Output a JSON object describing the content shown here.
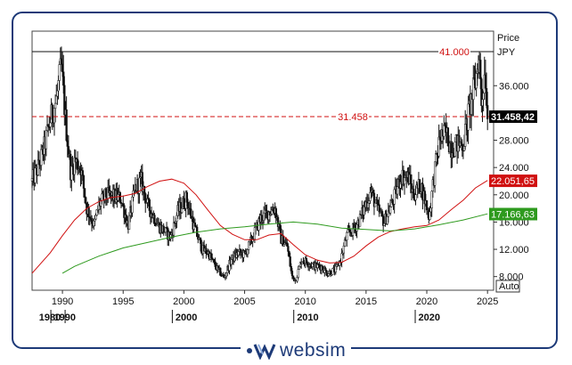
{
  "chart_data": {
    "type": "candlestick",
    "y_axis_title": "Price",
    "currency": "JPY",
    "scale_mode": "Auto",
    "ylim": [
      6000,
      44000
    ],
    "xlim": [
      1987.5,
      2025.5
    ],
    "y_ticks": [
      8000,
      12000,
      16000,
      20000,
      24000,
      28000,
      36000
    ],
    "y_tick_labels": [
      "8.000",
      "12.000",
      "16.000",
      "20.000",
      "24.000",
      "28.000",
      "36.000"
    ],
    "x_ticks": [
      1990,
      1995,
      2000,
      2005,
      2010,
      2015,
      2020,
      2025
    ],
    "x_tick_labels": [
      "1990",
      "1995",
      "2000",
      "2005",
      "2010",
      "2015",
      "2020",
      "2025"
    ],
    "decade_labels": [
      {
        "year": 1980,
        "label": "1980"
      },
      {
        "year": 1990,
        "label": "1990"
      },
      {
        "year": 2000,
        "label": "2000"
      },
      {
        "year": 2010,
        "label": "2010"
      },
      {
        "year": 2020,
        "label": "2020"
      }
    ],
    "price_path": [
      [
        1987.5,
        22000
      ],
      [
        1988,
        24000
      ],
      [
        1988.5,
        27000
      ],
      [
        1989,
        31000
      ],
      [
        1989.5,
        34000
      ],
      [
        1989.9,
        38900
      ],
      [
        1990.3,
        30000
      ],
      [
        1990.7,
        23000
      ],
      [
        1991,
        25000
      ],
      [
        1991.5,
        24000
      ],
      [
        1992,
        18000
      ],
      [
        1992.6,
        15500
      ],
      [
        1993,
        18500
      ],
      [
        1993.6,
        20000
      ],
      [
        1994,
        19800
      ],
      [
        1994.8,
        19500
      ],
      [
        1995.4,
        15500
      ],
      [
        1996,
        21000
      ],
      [
        1996.5,
        22000
      ],
      [
        1997,
        18500
      ],
      [
        1997.9,
        15500
      ],
      [
        1998.5,
        14500
      ],
      [
        1998.9,
        13800
      ],
      [
        1999.5,
        17500
      ],
      [
        2000.2,
        19500
      ],
      [
        2000.8,
        15500
      ],
      [
        2001.5,
        12000
      ],
      [
        2002,
        11500
      ],
      [
        2002.6,
        9500
      ],
      [
        2003.3,
        7800
      ],
      [
        2003.9,
        10500
      ],
      [
        2004.5,
        11500
      ],
      [
        2005,
        11200
      ],
      [
        2005.6,
        13500
      ],
      [
        2006.3,
        16500
      ],
      [
        2007,
        17500
      ],
      [
        2007.5,
        18000
      ],
      [
        2008,
        13500
      ],
      [
        2008.5,
        12500
      ],
      [
        2008.9,
        8000
      ],
      [
        2009.2,
        7500
      ],
      [
        2009.7,
        10500
      ],
      [
        2010.3,
        10000
      ],
      [
        2010.8,
        9500
      ],
      [
        2011.3,
        9500
      ],
      [
        2011.8,
        8500
      ],
      [
        2012.5,
        9000
      ],
      [
        2012.9,
        10400
      ],
      [
        2013.4,
        14000
      ],
      [
        2014,
        15000
      ],
      [
        2014.5,
        16500
      ],
      [
        2015.4,
        20500
      ],
      [
        2015.9,
        18000
      ],
      [
        2016.5,
        16000
      ],
      [
        2017.2,
        19000
      ],
      [
        2017.9,
        22800
      ],
      [
        2018.5,
        22500
      ],
      [
        2018.9,
        20000
      ],
      [
        2019.5,
        21500
      ],
      [
        2020.2,
        16800
      ],
      [
        2020.6,
        23000
      ],
      [
        2021.1,
        28500
      ],
      [
        2021.6,
        29000
      ],
      [
        2022,
        27000
      ],
      [
        2022.6,
        27500
      ],
      [
        2023,
        27500
      ],
      [
        2023.5,
        32500
      ],
      [
        2024.0,
        36500
      ],
      [
        2024.3,
        40500
      ],
      [
        2024.5,
        33500
      ],
      [
        2024.8,
        38500
      ],
      [
        2025.0,
        31458
      ]
    ],
    "series": [
      {
        "color": "#d01010",
        "points": [
          [
            1987.5,
            8500
          ],
          [
            1989,
            11500
          ],
          [
            1990,
            14000
          ],
          [
            1991,
            16300
          ],
          [
            1992,
            18000
          ],
          [
            1993,
            19000
          ],
          [
            1994,
            19600
          ],
          [
            1995,
            19800
          ],
          [
            1996,
            20200
          ],
          [
            1997,
            21200
          ],
          [
            1998,
            22000
          ],
          [
            1999,
            22300
          ],
          [
            2000,
            21700
          ],
          [
            2001,
            20000
          ],
          [
            2002,
            17700
          ],
          [
            2003,
            15500
          ],
          [
            2004,
            14200
          ],
          [
            2005,
            13400
          ],
          [
            2006,
            13400
          ],
          [
            2007,
            14100
          ],
          [
            2008,
            14300
          ],
          [
            2009,
            12700
          ],
          [
            2010,
            11200
          ],
          [
            2011,
            10400
          ],
          [
            2012,
            10000
          ],
          [
            2013,
            10100
          ],
          [
            2014,
            11000
          ],
          [
            2015,
            12500
          ],
          [
            2016,
            13800
          ],
          [
            2017,
            14600
          ],
          [
            2018,
            15000
          ],
          [
            2019,
            15300
          ],
          [
            2020,
            15500
          ],
          [
            2021,
            16300
          ],
          [
            2022,
            17800
          ],
          [
            2023,
            19200
          ],
          [
            2024,
            21000
          ],
          [
            2025,
            22100
          ]
        ]
      },
      {
        "color": "#2e9a1e",
        "points": [
          [
            1990,
            8500
          ],
          [
            1991,
            9500
          ],
          [
            1993,
            11000
          ],
          [
            1995,
            12200
          ],
          [
            1997,
            13000
          ],
          [
            1999,
            13800
          ],
          [
            2001,
            14500
          ],
          [
            2003,
            15000
          ],
          [
            2005,
            15300
          ],
          [
            2007,
            15700
          ],
          [
            2009,
            16000
          ],
          [
            2011,
            15700
          ],
          [
            2013,
            15100
          ],
          [
            2015,
            14900
          ],
          [
            2017,
            14700
          ],
          [
            2019,
            15000
          ],
          [
            2021,
            15600
          ],
          [
            2023,
            16300
          ],
          [
            2025,
            17200
          ]
        ]
      }
    ],
    "annotations": [
      {
        "value": 41000,
        "label": "41.000",
        "style": "solid-line"
      },
      {
        "value": 31458,
        "label": "31.458",
        "style": "dashed-line"
      }
    ],
    "price_tags": [
      {
        "value": 31458,
        "label": "31.458,42",
        "bg": "#000000",
        "fg": "#ffffff"
      },
      {
        "value": 22051,
        "label": "22.051,65",
        "bg": "#d01010",
        "fg": "#ffffff"
      },
      {
        "value": 17166,
        "label": "17.166,63",
        "bg": "#2e9a1e",
        "fg": "#ffffff"
      }
    ]
  },
  "brand": {
    "name": "websim"
  }
}
